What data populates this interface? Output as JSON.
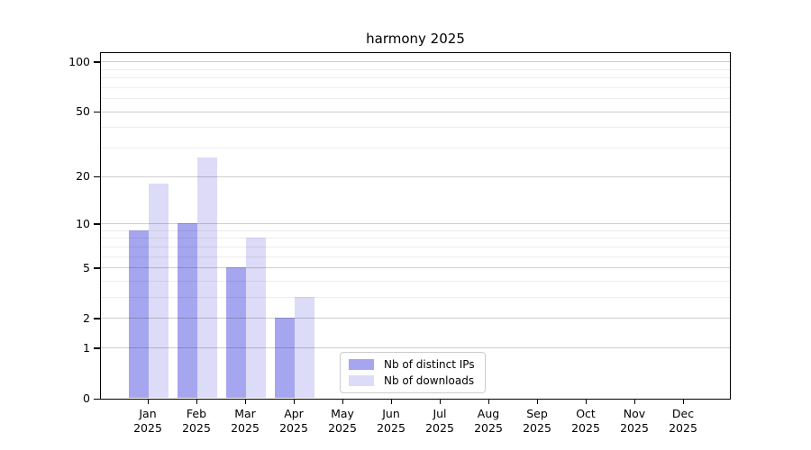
{
  "chart_data": {
    "type": "bar",
    "title": "harmony 2025",
    "x": {
      "categories": [
        {
          "month": "Jan",
          "year": "2025"
        },
        {
          "month": "Feb",
          "year": "2025"
        },
        {
          "month": "Mar",
          "year": "2025"
        },
        {
          "month": "Apr",
          "year": "2025"
        },
        {
          "month": "May",
          "year": "2025"
        },
        {
          "month": "Jun",
          "year": "2025"
        },
        {
          "month": "Jul",
          "year": "2025"
        },
        {
          "month": "Aug",
          "year": "2025"
        },
        {
          "month": "Sep",
          "year": "2025"
        },
        {
          "month": "Oct",
          "year": "2025"
        },
        {
          "month": "Nov",
          "year": "2025"
        },
        {
          "month": "Dec",
          "year": "2025"
        }
      ]
    },
    "series": [
      {
        "name": "Nb of distinct IPs",
        "color": "#a6a6f0",
        "values": [
          9,
          10,
          5,
          2,
          0,
          0,
          0,
          0,
          0,
          0,
          0,
          0
        ]
      },
      {
        "name": "Nb of downloads",
        "color": "#dcdcf8",
        "values": [
          18,
          26,
          8,
          3,
          0,
          0,
          0,
          0,
          0,
          0,
          0,
          0
        ]
      }
    ],
    "y_axis": {
      "scale": "log1p",
      "ylim": [
        0,
        113
      ],
      "major_ticks": [
        0,
        1,
        2,
        5,
        10,
        20,
        50,
        100
      ],
      "minor_gridlines": [
        3,
        4,
        6,
        7,
        8,
        9,
        30,
        40,
        60,
        70,
        80,
        90
      ],
      "grid": "horizontal"
    },
    "legend": {
      "position": "lower center"
    },
    "colors": {
      "grid_major": "#cfcfcf",
      "grid_minor": "#ededed",
      "spine": "#000000",
      "text": "#000000",
      "legend_border": "#cccccc",
      "background": "#ffffff"
    }
  }
}
